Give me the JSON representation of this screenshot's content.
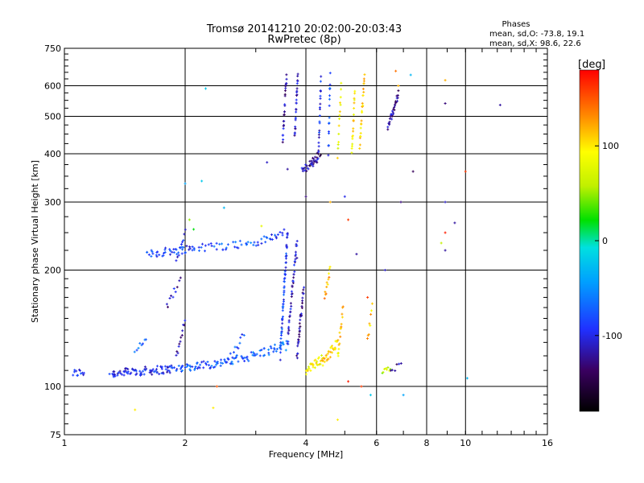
{
  "chart_data": {
    "type": "scatter",
    "title": "Tromsø 20141210 20:02:00-20:03:43",
    "subtitle": "RwPretec (8p)",
    "xlabel": "Frequency [MHz]",
    "ylabel": "Stationary phase Virtual Height [km]",
    "x_scale": "log",
    "y_scale": "log",
    "xlim": [
      1,
      16
    ],
    "ylim": [
      75,
      750
    ],
    "x_ticks": [
      1,
      2,
      4,
      6,
      8,
      10,
      16
    ],
    "y_ticks": [
      75,
      100,
      200,
      300,
      400,
      500,
      600,
      750
    ],
    "grid": true,
    "info": {
      "heading": "Phases",
      "line1": "mean, sd,O: -73.8, 19.1",
      "line2": "mean, sd,X:  98.6, 22.6"
    },
    "colorbar": {
      "label": "[deg",
      "range": [
        -180,
        180
      ],
      "ticks": [
        100,
        0,
        -100
      ]
    },
    "series": [
      {
        "segments": [
          [
            1.05,
            108,
            1.12,
            109,
            12,
            -95
          ],
          [
            1.3,
            108,
            1.85,
            111,
            80,
            -100
          ],
          [
            1.85,
            111,
            2.6,
            116,
            60,
            -80
          ],
          [
            2.6,
            116,
            3.6,
            128,
            50,
            -70
          ],
          [
            1.6,
            220,
            2.1,
            228,
            40,
            -90
          ],
          [
            2.1,
            228,
            3.0,
            235,
            35,
            -75
          ],
          [
            3.0,
            235,
            3.55,
            250,
            20,
            -85
          ],
          [
            3.45,
            120,
            3.6,
            250,
            60,
            -85
          ],
          [
            3.6,
            130,
            3.8,
            240,
            40,
            -110
          ],
          [
            3.8,
            120,
            3.95,
            180,
            35,
            -120
          ],
          [
            3.5,
            430,
            3.58,
            640,
            25,
            -120
          ],
          [
            3.75,
            440,
            3.82,
            640,
            25,
            -110
          ],
          [
            3.9,
            360,
            4.3,
            390,
            25,
            -115
          ],
          [
            4.1,
            380,
            4.35,
            400,
            12,
            -130
          ],
          [
            4.3,
            400,
            4.36,
            620,
            20,
            -100
          ],
          [
            4.55,
            400,
            4.6,
            640,
            15,
            -80
          ],
          [
            4.8,
            400,
            4.9,
            600,
            14,
            90
          ],
          [
            5.2,
            400,
            5.3,
            580,
            18,
            100
          ],
          [
            5.45,
            420,
            5.6,
            640,
            25,
            110
          ],
          [
            6.4,
            470,
            6.8,
            570,
            30,
            -120
          ],
          [
            1.8,
            160,
            1.95,
            190,
            10,
            -115
          ],
          [
            1.9,
            210,
            2.0,
            250,
            10,
            -95
          ],
          [
            1.9,
            120,
            2.0,
            150,
            12,
            -115
          ],
          [
            2.6,
            120,
            2.8,
            135,
            10,
            -80
          ],
          [
            1.5,
            120,
            1.6,
            135,
            8,
            -70
          ],
          [
            4.0,
            110,
            4.4,
            118,
            30,
            90
          ],
          [
            4.4,
            115,
            4.8,
            130,
            30,
            105
          ],
          [
            4.8,
            120,
            4.95,
            160,
            16,
            110
          ],
          [
            4.45,
            170,
            4.6,
            200,
            12,
            120
          ],
          [
            5.7,
            130,
            5.85,
            160,
            8,
            110
          ],
          [
            6.2,
            108,
            6.5,
            112,
            8,
            60
          ],
          [
            6.5,
            110,
            6.9,
            115,
            6,
            -120
          ]
        ]
      },
      {
        "points": [
          [
            12.2,
            535,
            -120
          ],
          [
            8.9,
            540,
            -130
          ],
          [
            8.9,
            620,
            120
          ],
          [
            8.9,
            300,
            -110
          ],
          [
            8.9,
            250,
            170
          ],
          [
            8.9,
            225,
            -120
          ],
          [
            8.7,
            235,
            60
          ],
          [
            7.4,
            360,
            -140
          ],
          [
            10.0,
            360,
            160
          ],
          [
            9.4,
            265,
            -120
          ],
          [
            10.1,
            105,
            -30
          ],
          [
            7.0,
            95,
            -40
          ],
          [
            5.1,
            103,
            170
          ],
          [
            5.5,
            100,
            160
          ],
          [
            4.8,
            82,
            100
          ],
          [
            2.35,
            88,
            100
          ],
          [
            1.5,
            87,
            100
          ],
          [
            2.25,
            590,
            -20
          ],
          [
            2.2,
            340,
            -20
          ],
          [
            2.0,
            335,
            -40
          ],
          [
            2.05,
            270,
            50
          ],
          [
            2.1,
            255,
            20
          ],
          [
            2.5,
            290,
            -30
          ],
          [
            3.3,
            240,
            -90
          ],
          [
            3.8,
            215,
            -120
          ],
          [
            3.1,
            260,
            80
          ],
          [
            4.0,
            310,
            -130
          ],
          [
            4.6,
            300,
            120
          ],
          [
            5.0,
            310,
            -100
          ],
          [
            5.1,
            270,
            160
          ],
          [
            5.35,
            220,
            -120
          ],
          [
            5.7,
            170,
            160
          ],
          [
            3.6,
            365,
            -120
          ],
          [
            3.2,
            380,
            -110
          ],
          [
            6.3,
            200,
            -110
          ],
          [
            6.9,
            300,
            -130
          ],
          [
            7.3,
            640,
            -30
          ],
          [
            6.8,
            600,
            120
          ],
          [
            6.7,
            655,
            140
          ],
          [
            5.8,
            95,
            -20
          ],
          [
            2.4,
            100,
            150
          ]
        ]
      }
    ]
  }
}
